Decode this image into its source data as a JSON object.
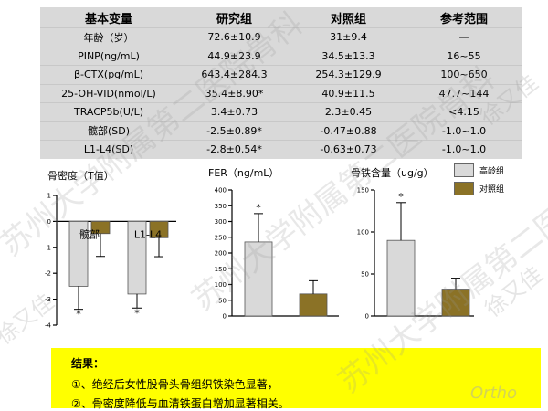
{
  "table": {
    "headers": [
      "基本变量",
      "研究组",
      "对照组",
      "参考范围"
    ],
    "rows": [
      [
        "年龄（岁）",
        "72.6±10.9",
        "31±9.4",
        "—"
      ],
      [
        "PINP(ng/mL)",
        "44.9±23.9",
        "34.5±13.3",
        "16~55"
      ],
      [
        "β-CTX(pg/mL)",
        "643.4±284.3",
        "254.3±129.9",
        "100~650"
      ],
      [
        "25-OH-VID(nmol/L)",
        "35.4±8.90*",
        "40.9±11.5",
        "47.7~144"
      ],
      [
        "TRACP5b(U/L)",
        "3.4±0.73",
        "2.3±0.45",
        "<4.15"
      ],
      [
        "髋部(SD)",
        "-2.5±0.89*",
        "-0.47±0.88",
        "-1.0~1.0"
      ],
      [
        "L1-L4(SD)",
        "-2.8±0.54*",
        "-0.63±0.73",
        "-1.0~1.0"
      ]
    ]
  },
  "legend": {
    "items": [
      {
        "label": "高龄组",
        "color": "#d9d9d9"
      },
      {
        "label": "对照组",
        "color": "#8b7226"
      }
    ]
  },
  "chart_data": [
    {
      "type": "bar",
      "title": "骨密度（T值）",
      "categories": [
        "髋部",
        "L1-L4"
      ],
      "series": [
        {
          "name": "高龄组",
          "values": [
            -2.5,
            -2.8
          ],
          "errors": [
            0.89,
            0.54
          ],
          "significant": [
            true,
            true
          ]
        },
        {
          "name": "对照组",
          "values": [
            -0.47,
            -0.63
          ],
          "errors": [
            0.88,
            0.73
          ],
          "significant": [
            false,
            false
          ]
        }
      ],
      "ylim": [
        -4,
        1
      ],
      "yticks": [
        1,
        0,
        -1,
        -2,
        -3,
        -4
      ]
    },
    {
      "type": "bar",
      "title": "FER（ng/mL）",
      "categories": [
        ""
      ],
      "series": [
        {
          "name": "高龄组",
          "values": [
            235
          ],
          "errors": [
            90
          ],
          "significant": [
            true
          ]
        },
        {
          "name": "对照组",
          "values": [
            70
          ],
          "errors": [
            42
          ],
          "significant": [
            false
          ]
        }
      ],
      "ylim": [
        0,
        400
      ],
      "yticks": [
        0,
        50,
        100,
        150,
        200,
        250,
        300,
        350,
        400
      ]
    },
    {
      "type": "bar",
      "title": "骨铁含量（ug/g）",
      "categories": [
        ""
      ],
      "series": [
        {
          "name": "高龄组",
          "values": [
            90
          ],
          "errors": [
            45
          ],
          "significant": [
            true
          ]
        },
        {
          "name": "对照组",
          "values": [
            32
          ],
          "errors": [
            13
          ],
          "significant": [
            false
          ]
        }
      ],
      "ylim": [
        0,
        150
      ],
      "yticks": [
        0,
        50,
        100,
        150
      ]
    }
  ],
  "result": {
    "title": "结果：",
    "items": [
      "①、绝经后女性股骨头骨组织铁染色显著，",
      "②、骨密度降低与血清铁蛋白增加显著相关。"
    ]
  },
  "watermark": {
    "text": "苏州大学附属第二医院骨科",
    "author": "徐又佳",
    "logo": "Ortho"
  }
}
